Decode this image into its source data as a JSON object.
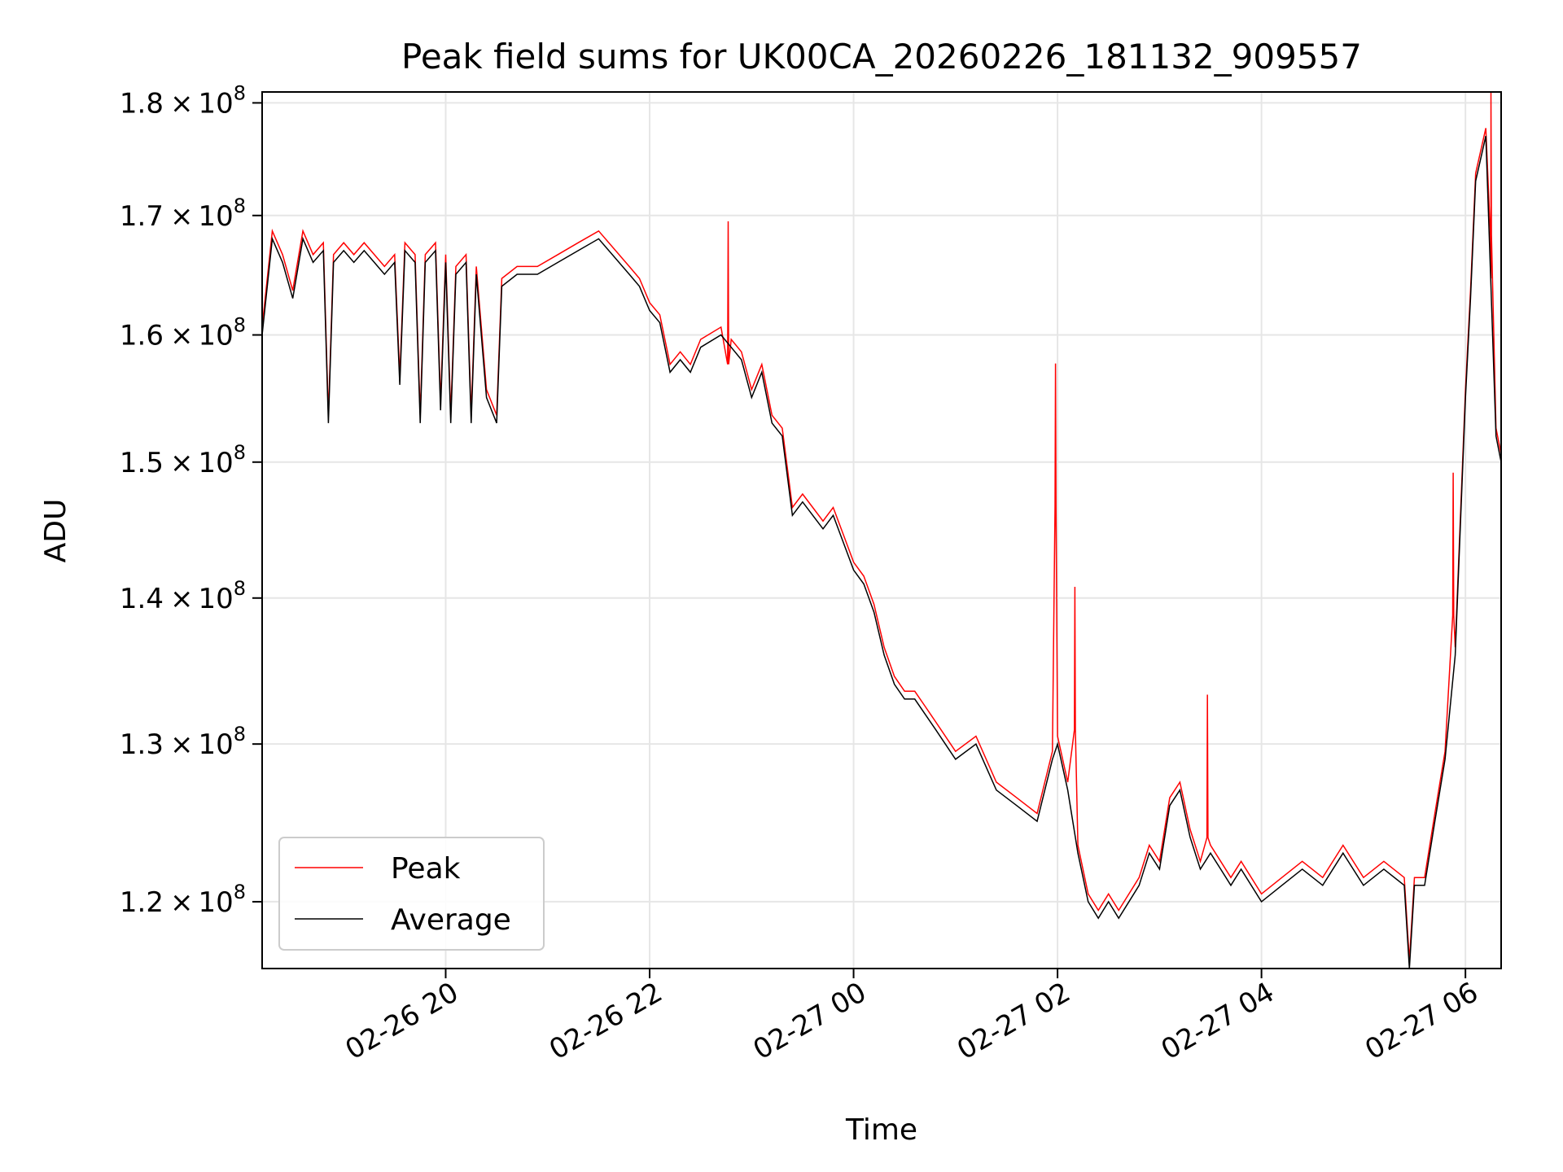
{
  "chart_data": {
    "type": "line",
    "title": "Peak field sums for UK00CA_20260226_181132_909557",
    "xlabel": "Time",
    "ylabel": "ADU",
    "x_unit": "hours",
    "xlim": [
      18.2,
      30.35
    ],
    "ylim": [
      116000000.0,
      181000000.0
    ],
    "y_scale": "log",
    "grid": true,
    "legend_position": "lower-left",
    "x_ticks": [
      {
        "value": 20,
        "label": "02-26 20"
      },
      {
        "value": 22,
        "label": "02-26 22"
      },
      {
        "value": 24,
        "label": "02-27 00"
      },
      {
        "value": 26,
        "label": "02-27 02"
      },
      {
        "value": 28,
        "label": "02-27 04"
      },
      {
        "value": 30,
        "label": "02-27 06"
      }
    ],
    "y_ticks": [
      {
        "value": 120000000.0,
        "mantissa": "1.2",
        "exp": "8"
      },
      {
        "value": 130000000.0,
        "mantissa": "1.3",
        "exp": "8"
      },
      {
        "value": 140000000.0,
        "mantissa": "1.4",
        "exp": "8"
      },
      {
        "value": 150000000.0,
        "mantissa": "1.5",
        "exp": "8"
      },
      {
        "value": 160000000.0,
        "mantissa": "1.6",
        "exp": "8"
      },
      {
        "value": 170000000.0,
        "mantissa": "1.7",
        "exp": "8"
      },
      {
        "value": 180000000.0,
        "mantissa": "1.8",
        "exp": "8"
      }
    ],
    "times_symbol": "×",
    "base": "10",
    "series": [
      {
        "name": "Average",
        "color": "#000000",
        "points": [
          [
            18.2,
            160000000.0
          ],
          [
            18.3,
            168000000.0
          ],
          [
            18.4,
            166000000.0
          ],
          [
            18.5,
            163000000.0
          ],
          [
            18.6,
            168000000.0
          ],
          [
            18.7,
            166000000.0
          ],
          [
            18.8,
            167000000.0
          ],
          [
            18.85,
            153000000.0
          ],
          [
            18.9,
            166000000.0
          ],
          [
            19.0,
            167000000.0
          ],
          [
            19.1,
            166000000.0
          ],
          [
            19.2,
            167000000.0
          ],
          [
            19.3,
            166000000.0
          ],
          [
            19.4,
            165000000.0
          ],
          [
            19.5,
            166000000.0
          ],
          [
            19.55,
            156000000.0
          ],
          [
            19.6,
            167000000.0
          ],
          [
            19.7,
            166000000.0
          ],
          [
            19.75,
            153000000.0
          ],
          [
            19.8,
            166000000.0
          ],
          [
            19.9,
            167000000.0
          ],
          [
            19.95,
            154000000.0
          ],
          [
            20.0,
            166000000.0
          ],
          [
            20.05,
            153000000.0
          ],
          [
            20.1,
            165000000.0
          ],
          [
            20.2,
            166000000.0
          ],
          [
            20.25,
            153000000.0
          ],
          [
            20.3,
            165000000.0
          ],
          [
            20.4,
            155000000.0
          ],
          [
            20.5,
            153000000.0
          ],
          [
            20.55,
            164000000.0
          ],
          [
            20.7,
            165000000.0
          ],
          [
            20.9,
            165000000.0
          ],
          [
            21.1,
            166000000.0
          ],
          [
            21.3,
            167000000.0
          ],
          [
            21.5,
            168000000.0
          ],
          [
            21.7,
            166000000.0
          ],
          [
            21.8,
            165000000.0
          ],
          [
            21.9,
            164000000.0
          ],
          [
            22.0,
            162000000.0
          ],
          [
            22.1,
            161000000.0
          ],
          [
            22.2,
            157000000.0
          ],
          [
            22.3,
            158000000.0
          ],
          [
            22.4,
            157000000.0
          ],
          [
            22.5,
            159000000.0
          ],
          [
            22.7,
            160000000.0
          ],
          [
            22.8,
            159000000.0
          ],
          [
            22.9,
            158000000.0
          ],
          [
            23.0,
            155000000.0
          ],
          [
            23.1,
            157000000.0
          ],
          [
            23.2,
            153000000.0
          ],
          [
            23.3,
            152000000.0
          ],
          [
            23.4,
            146000000.0
          ],
          [
            23.5,
            147000000.0
          ],
          [
            23.6,
            146000000.0
          ],
          [
            23.7,
            145000000.0
          ],
          [
            23.8,
            146000000.0
          ],
          [
            23.9,
            144000000.0
          ],
          [
            24.0,
            142000000.0
          ],
          [
            24.1,
            141000000.0
          ],
          [
            24.2,
            139000000.0
          ],
          [
            24.3,
            136000000.0
          ],
          [
            24.4,
            134000000.0
          ],
          [
            24.5,
            133000000.0
          ],
          [
            24.6,
            133000000.0
          ],
          [
            24.7,
            132000000.0
          ],
          [
            24.8,
            131000000.0
          ],
          [
            25.0,
            129000000.0
          ],
          [
            25.2,
            130000000.0
          ],
          [
            25.4,
            127000000.0
          ],
          [
            25.6,
            126000000.0
          ],
          [
            25.8,
            125000000.0
          ],
          [
            25.95,
            129000000.0
          ],
          [
            26.0,
            130000000.0
          ],
          [
            26.1,
            127000000.0
          ],
          [
            26.2,
            123000000.0
          ],
          [
            26.3,
            120000000.0
          ],
          [
            26.4,
            119000000.0
          ],
          [
            26.5,
            120000000.0
          ],
          [
            26.6,
            119000000.0
          ],
          [
            26.8,
            121000000.0
          ],
          [
            26.9,
            123000000.0
          ],
          [
            27.0,
            122000000.0
          ],
          [
            27.1,
            126000000.0
          ],
          [
            27.2,
            127000000.0
          ],
          [
            27.3,
            124000000.0
          ],
          [
            27.4,
            122000000.0
          ],
          [
            27.5,
            123000000.0
          ],
          [
            27.6,
            122000000.0
          ],
          [
            27.7,
            121000000.0
          ],
          [
            27.8,
            122000000.0
          ],
          [
            28.0,
            120000000.0
          ],
          [
            28.2,
            121000000.0
          ],
          [
            28.4,
            122000000.0
          ],
          [
            28.6,
            121000000.0
          ],
          [
            28.8,
            123000000.0
          ],
          [
            29.0,
            121000000.0
          ],
          [
            29.2,
            122000000.0
          ],
          [
            29.4,
            121000000.0
          ],
          [
            29.45,
            116000000.0
          ],
          [
            29.5,
            121000000.0
          ],
          [
            29.6,
            121000000.0
          ],
          [
            29.7,
            125000000.0
          ],
          [
            29.8,
            129000000.0
          ],
          [
            29.9,
            136000000.0
          ],
          [
            30.0,
            155000000.0
          ],
          [
            30.05,
            163000000.0
          ],
          [
            30.1,
            173000000.0
          ],
          [
            30.2,
            177000000.0
          ],
          [
            30.25,
            164000000.0
          ],
          [
            30.3,
            152000000.0
          ],
          [
            30.35,
            150000000.0
          ]
        ]
      },
      {
        "name": "Peak",
        "color": "#ff0000",
        "spikes": [
          [
            22.77,
            169500000.0
          ],
          [
            25.98,
            157700000.0
          ],
          [
            26.17,
            140800000.0
          ],
          [
            27.47,
            133300000.0
          ],
          [
            29.88,
            149200000.0
          ],
          [
            30.25,
            181000000.0
          ]
        ]
      }
    ]
  }
}
